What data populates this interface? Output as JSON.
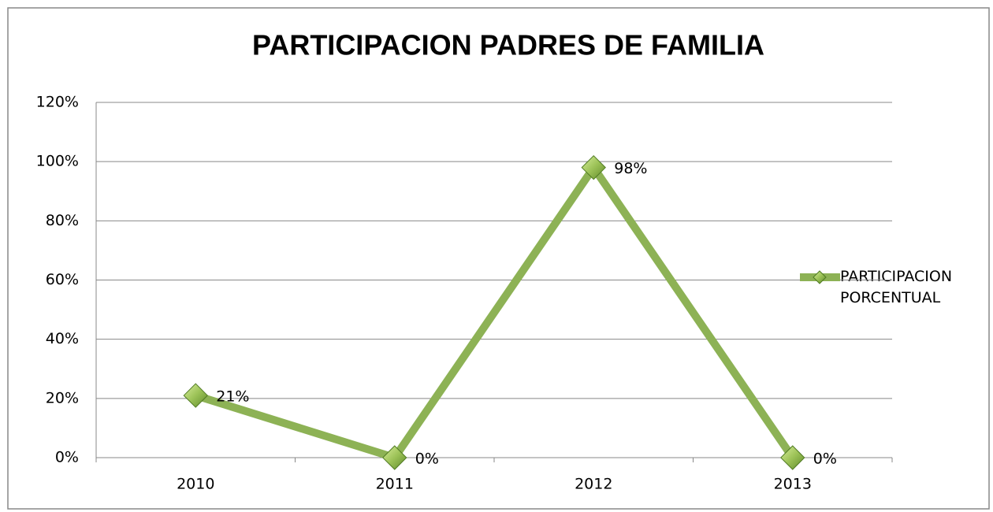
{
  "chart_data": {
    "type": "line",
    "title": "PARTICIPACION PADRES DE FAMILIA",
    "categories": [
      "2010",
      "2011",
      "2012",
      "2013"
    ],
    "series": [
      {
        "name": "PARTICIPACION PORCENTUAL",
        "color": "#8db255",
        "values": [
          21,
          0,
          98,
          0
        ],
        "value_labels": [
          "21%",
          "0%",
          "98%",
          "0%"
        ]
      }
    ],
    "ylim": [
      0,
      120
    ],
    "yticks": [
      {
        "value": 0,
        "label": "0%"
      },
      {
        "value": 20,
        "label": "20%"
      },
      {
        "value": 40,
        "label": "40%"
      },
      {
        "value": 60,
        "label": "60%"
      },
      {
        "value": 80,
        "label": "80%"
      },
      {
        "value": 100,
        "label": "100%"
      },
      {
        "value": 120,
        "label": "120%"
      }
    ],
    "grid": true,
    "legend": "right"
  }
}
